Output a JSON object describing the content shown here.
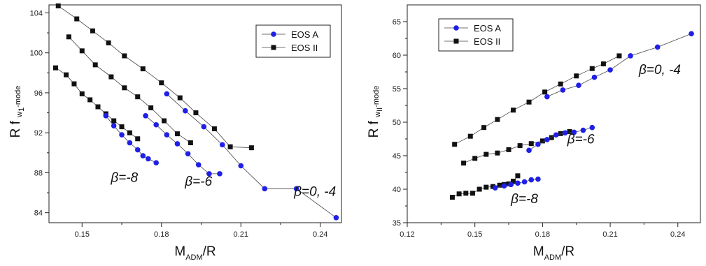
{
  "chart_data": [
    {
      "type": "line",
      "panel": "left",
      "ylabel_main": "R f",
      "ylabel_sub1": "w",
      "ylabel_sub2": "1",
      "ylabel_sub3": "-mode",
      "xlabel_main": "M",
      "xlabel_sub": "ADM",
      "xlabel_tail": "/R",
      "xlim": [
        0.1375,
        0.248
      ],
      "ylim": [
        83.0,
        104.8
      ],
      "x_ticks": [
        0.15,
        0.18,
        0.21,
        0.24
      ],
      "x_tick_labels": [
        "0.15",
        "0.18",
        "0.21",
        "0.24"
      ],
      "x_minor_ticks": [
        0.135,
        0.165,
        0.195,
        0.225
      ],
      "y_ticks": [
        84,
        88,
        92,
        96,
        100,
        104
      ],
      "y_tick_labels": [
        "84",
        "88",
        "92",
        "96",
        "100",
        "104"
      ],
      "y_minor_ticks": [
        86,
        90,
        94,
        98,
        102
      ],
      "legend": {
        "position": "top-right",
        "entries": [
          {
            "label": "EOS A",
            "marker": "circle",
            "color": "#1f1fe6"
          },
          {
            "label": "EOS II",
            "marker": "square",
            "color": "#111111"
          }
        ]
      },
      "annotations": [
        {
          "text": "β=0, -4",
          "x": 0.238,
          "y": 85.7
        },
        {
          "text": "β=-6",
          "x": 0.194,
          "y": 86.7
        },
        {
          "text": "β=-8",
          "x": 0.166,
          "y": 87.1
        }
      ],
      "series": [
        {
          "name": "EOS II",
          "group": "β=0, -4",
          "marker": "square",
          "color": "#111111",
          "x": [
            0.141,
            0.148,
            0.154,
            0.16,
            0.166,
            0.173,
            0.18,
            0.187,
            0.193,
            0.2,
            0.206,
            0.214
          ],
          "y": [
            104.7,
            103.4,
            102.2,
            101.0,
            99.7,
            98.4,
            97.0,
            95.5,
            94.0,
            92.4,
            90.6,
            90.5
          ]
        },
        {
          "name": "EOS A",
          "group": "β=0, -4",
          "marker": "circle",
          "color": "#1f1fe6",
          "x": [
            0.182,
            0.189,
            0.196,
            0.203,
            0.21,
            0.219,
            0.231,
            0.246
          ],
          "y": [
            95.9,
            94.2,
            92.6,
            90.8,
            88.7,
            86.4,
            86.4,
            83.5
          ]
        },
        {
          "name": "EOS II",
          "group": "β=-6",
          "marker": "square",
          "color": "#111111",
          "x": [
            0.145,
            0.15,
            0.155,
            0.161,
            0.166,
            0.171,
            0.176,
            0.181,
            0.186,
            0.191
          ],
          "y": [
            101.6,
            100.2,
            98.8,
            97.6,
            96.5,
            95.6,
            94.5,
            93.2,
            91.9,
            91.0
          ]
        },
        {
          "name": "EOS A",
          "group": "β=-6",
          "marker": "circle",
          "color": "#1f1fe6",
          "x": [
            0.174,
            0.178,
            0.182,
            0.186,
            0.19,
            0.194,
            0.198,
            0.202
          ],
          "y": [
            93.7,
            92.8,
            91.8,
            90.9,
            89.9,
            88.8,
            87.9,
            87.9
          ]
        },
        {
          "name": "EOS II",
          "group": "β=-8",
          "marker": "square",
          "color": "#111111",
          "x": [
            0.14,
            0.144,
            0.147,
            0.15,
            0.153,
            0.156,
            0.159,
            0.162,
            0.165,
            0.168,
            0.171
          ],
          "y": [
            98.5,
            97.8,
            96.9,
            95.9,
            95.3,
            94.6,
            93.9,
            93.2,
            92.6,
            92.0,
            91.4
          ]
        },
        {
          "name": "EOS A",
          "group": "β=-8",
          "marker": "circle",
          "color": "#1f1fe6",
          "x": [
            0.159,
            0.162,
            0.165,
            0.168,
            0.171,
            0.173,
            0.175,
            0.178
          ],
          "y": [
            93.7,
            92.7,
            91.8,
            91.0,
            90.3,
            89.7,
            89.4,
            89.0
          ]
        }
      ]
    },
    {
      "type": "line",
      "panel": "right",
      "ylabel_main": "R f",
      "ylabel_sub1": "w",
      "ylabel_sub2": "II",
      "ylabel_sub3": "-mode",
      "xlabel_main": "M",
      "xlabel_sub": "ADM",
      "xlabel_tail": "/R",
      "xlim": [
        0.12,
        0.25
      ],
      "ylim": [
        35,
        67.5
      ],
      "x_ticks": [
        0.12,
        0.15,
        0.18,
        0.21,
        0.24
      ],
      "x_tick_labels": [
        "0.12",
        "0.15",
        "0.18",
        "0.21",
        "0.24"
      ],
      "x_minor_ticks": [
        0.135,
        0.165,
        0.195,
        0.225
      ],
      "y_ticks": [
        35,
        40,
        45,
        50,
        55,
        60,
        65
      ],
      "y_tick_labels": [
        "35",
        "40",
        "45",
        "50",
        "55",
        "60",
        "65"
      ],
      "y_minor_ticks": [
        37.5,
        42.5,
        47.5,
        52.5,
        57.5,
        62.5
      ],
      "legend": {
        "position": "top-left",
        "entries": [
          {
            "label": "EOS A",
            "marker": "circle",
            "color": "#1f1fe6"
          },
          {
            "label": "EOS II",
            "marker": "square",
            "color": "#111111"
          }
        ]
      },
      "annotations": [
        {
          "text": "β=0, -4",
          "x": 0.232,
          "y": 57.2
        },
        {
          "text": "β=-6",
          "x": 0.197,
          "y": 46.8
        },
        {
          "text": "β=-8",
          "x": 0.172,
          "y": 37.9
        }
      ],
      "series": [
        {
          "name": "EOS II",
          "group": "β=0, -4",
          "marker": "square",
          "color": "#111111",
          "x": [
            0.141,
            0.148,
            0.154,
            0.16,
            0.167,
            0.174,
            0.181,
            0.188,
            0.195,
            0.202,
            0.207,
            0.214
          ],
          "y": [
            46.7,
            47.9,
            49.2,
            50.4,
            51.8,
            53.0,
            54.5,
            55.7,
            56.9,
            58.0,
            58.7,
            59.9
          ]
        },
        {
          "name": "EOS A",
          "group": "β=0, -4",
          "marker": "circle",
          "color": "#1f1fe6",
          "x": [
            0.182,
            0.189,
            0.196,
            0.203,
            0.21,
            0.219,
            0.231,
            0.246
          ],
          "y": [
            53.8,
            54.8,
            55.5,
            56.7,
            57.8,
            59.9,
            61.2,
            63.2
          ]
        },
        {
          "name": "EOS II",
          "group": "β=-6",
          "marker": "square",
          "color": "#111111",
          "x": [
            0.145,
            0.15,
            0.155,
            0.16,
            0.165,
            0.17,
            0.175,
            0.18,
            0.184,
            0.188,
            0.192
          ],
          "y": [
            43.9,
            44.6,
            45.2,
            45.4,
            45.9,
            46.5,
            46.8,
            47.2,
            47.7,
            48.3,
            48.6
          ]
        },
        {
          "name": "EOS A",
          "group": "β=-6",
          "marker": "circle",
          "color": "#1f1fe6",
          "x": [
            0.174,
            0.178,
            0.182,
            0.186,
            0.19,
            0.194,
            0.198,
            0.202
          ],
          "y": [
            45.8,
            46.7,
            47.4,
            48.1,
            48.4,
            48.5,
            48.8,
            49.2
          ]
        },
        {
          "name": "EOS II",
          "group": "β=-8",
          "marker": "square",
          "color": "#111111",
          "x": [
            0.14,
            0.143,
            0.146,
            0.149,
            0.152,
            0.155,
            0.158,
            0.161,
            0.163,
            0.165,
            0.167,
            0.169
          ],
          "y": [
            38.8,
            39.3,
            39.4,
            39.4,
            40.0,
            40.3,
            40.4,
            40.6,
            40.7,
            40.8,
            41.2,
            42.0
          ]
        },
        {
          "name": "EOS A",
          "group": "β=-8",
          "marker": "circle",
          "color": "#1f1fe6",
          "x": [
            0.159,
            0.163,
            0.166,
            0.169,
            0.172,
            0.175,
            0.178
          ],
          "y": [
            40.2,
            40.5,
            40.7,
            40.9,
            41.1,
            41.4,
            41.5
          ]
        }
      ]
    }
  ]
}
